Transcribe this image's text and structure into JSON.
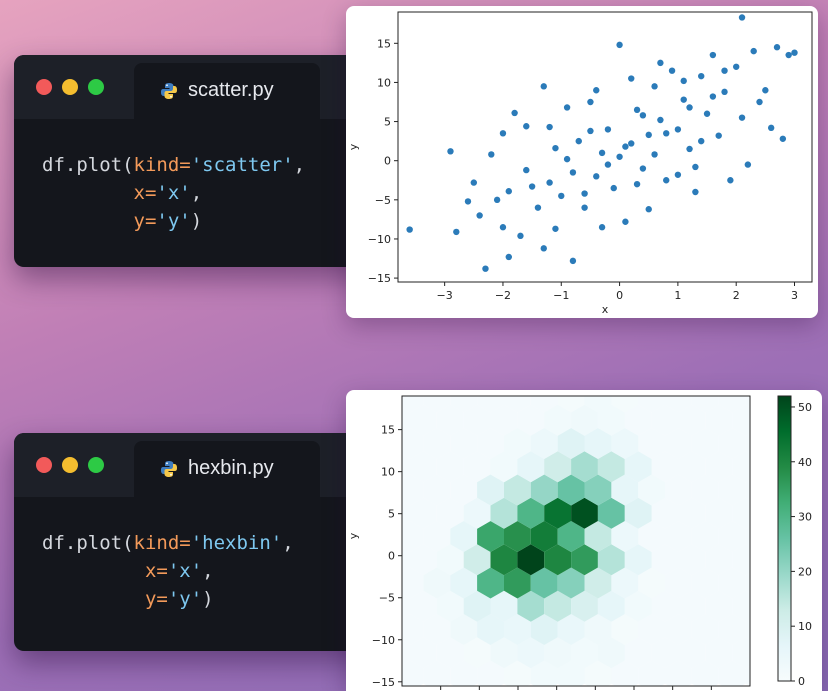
{
  "editors": [
    {
      "tab_label": "scatter.py",
      "code": {
        "line1_prefix": "df.plot(",
        "kind_kw": "kind=",
        "kind_val": "'scatter'",
        "line1_suffix": ",",
        "x_kw": "x=",
        "x_val": "'x'",
        "x_suffix": ",",
        "y_kw": "y=",
        "y_val": "'y'",
        "y_suffix": ")"
      }
    },
    {
      "tab_label": "hexbin.py",
      "code": {
        "line1_prefix": "df.plot(",
        "kind_kw": "kind=",
        "kind_val": "'hexbin'",
        "line1_suffix": ",",
        "x_kw": "x=",
        "x_val": "'x'",
        "x_suffix": ",",
        "y_kw": "y=",
        "y_val": "'y'",
        "y_suffix": ")"
      }
    }
  ],
  "colors": {
    "scatter_point": "#2b7bb9",
    "hex_low": "#f4fafd",
    "hex_high": "#00441b",
    "code_bg": "#14161c"
  },
  "icons": {
    "tab_icon": "python-logo-icon"
  },
  "chart_data": [
    {
      "type": "scatter",
      "xlabel": "x",
      "ylabel": "y",
      "xlim": [
        -3.8,
        3.3
      ],
      "ylim": [
        -15.5,
        19
      ],
      "xticks": [
        -3,
        -2,
        -1,
        0,
        1,
        2,
        3
      ],
      "yticks": [
        -15,
        -10,
        -5,
        0,
        5,
        10,
        15
      ],
      "grid": false,
      "points": [
        [
          -3.6,
          -8.8
        ],
        [
          -2.9,
          1.2
        ],
        [
          -2.8,
          -9.1
        ],
        [
          -2.3,
          -13.8
        ],
        [
          -2.6,
          -5.2
        ],
        [
          -2.1,
          -5.0
        ],
        [
          -2.0,
          -8.5
        ],
        [
          -1.9,
          -12.3
        ],
        [
          -1.7,
          -9.6
        ],
        [
          -1.5,
          -3.3
        ],
        [
          -1.3,
          -11.2
        ],
        [
          -1.1,
          -8.7
        ],
        [
          -0.8,
          -12.8
        ],
        [
          -2.2,
          0.8
        ],
        [
          -2.0,
          3.5
        ],
        [
          -1.8,
          6.1
        ],
        [
          -1.6,
          -1.2
        ],
        [
          -1.3,
          9.5
        ],
        [
          -1.2,
          4.3
        ],
        [
          -1.0,
          -4.5
        ],
        [
          -0.9,
          0.2
        ],
        [
          -0.7,
          2.5
        ],
        [
          -0.6,
          -6.0
        ],
        [
          -0.5,
          7.5
        ],
        [
          -0.4,
          -2.0
        ],
        [
          -0.3,
          1.0
        ],
        [
          -0.2,
          4.0
        ],
        [
          -0.1,
          -3.5
        ],
        [
          0.0,
          14.8
        ],
        [
          0.0,
          0.5
        ],
        [
          0.1,
          -7.8
        ],
        [
          0.2,
          2.2
        ],
        [
          0.3,
          6.5
        ],
        [
          0.4,
          -1.0
        ],
        [
          0.5,
          3.3
        ],
        [
          0.6,
          9.5
        ],
        [
          0.7,
          5.2
        ],
        [
          0.8,
          -2.5
        ],
        [
          0.9,
          11.5
        ],
        [
          1.0,
          4.0
        ],
        [
          1.1,
          7.8
        ],
        [
          1.2,
          1.5
        ],
        [
          1.3,
          -4.0
        ],
        [
          1.4,
          10.8
        ],
        [
          1.5,
          6.0
        ],
        [
          1.6,
          13.5
        ],
        [
          1.7,
          3.2
        ],
        [
          1.8,
          8.8
        ],
        [
          1.9,
          -2.5
        ],
        [
          2.0,
          12.0
        ],
        [
          2.1,
          5.5
        ],
        [
          2.1,
          18.3
        ],
        [
          2.2,
          -0.5
        ],
        [
          2.3,
          14.0
        ],
        [
          2.5,
          9.0
        ],
        [
          2.6,
          4.2
        ],
        [
          2.7,
          14.5
        ],
        [
          2.8,
          2.8
        ],
        [
          2.9,
          13.5
        ],
        [
          3.0,
          13.8
        ],
        [
          -1.4,
          -6.0
        ],
        [
          -1.2,
          -2.8
        ],
        [
          -0.8,
          -1.5
        ],
        [
          -0.6,
          -4.2
        ],
        [
          -0.5,
          3.8
        ],
        [
          -0.2,
          -0.5
        ],
        [
          0.1,
          1.8
        ],
        [
          0.3,
          -3.0
        ],
        [
          0.4,
          5.8
        ],
        [
          0.6,
          0.8
        ],
        [
          0.8,
          3.5
        ],
        [
          1.0,
          -1.8
        ],
        [
          1.2,
          6.8
        ],
        [
          1.4,
          2.5
        ],
        [
          1.6,
          8.2
        ],
        [
          -2.5,
          -2.8
        ],
        [
          -2.4,
          -7.0
        ],
        [
          -1.9,
          -3.9
        ],
        [
          -1.6,
          4.4
        ],
        [
          -1.1,
          1.6
        ],
        [
          -0.9,
          6.8
        ],
        [
          -0.4,
          9.0
        ],
        [
          0.2,
          10.5
        ],
        [
          0.7,
          12.5
        ],
        [
          1.1,
          10.2
        ],
        [
          1.8,
          11.5
        ],
        [
          2.4,
          7.5
        ],
        [
          -0.3,
          -8.5
        ],
        [
          0.5,
          -6.2
        ],
        [
          1.3,
          -0.8
        ]
      ]
    },
    {
      "type": "heatmap",
      "subtype": "hexbin",
      "ylabel": "y",
      "ylim": [
        -15.5,
        19
      ],
      "yticks": [
        -15,
        -10,
        -5,
        0,
        5,
        10,
        15
      ],
      "colorbar": {
        "min": 0,
        "max": 52,
        "ticks": [
          0,
          10,
          20,
          30,
          40,
          50
        ],
        "colormap": "BuGn"
      },
      "bins": [
        [
          4,
          0,
          1
        ],
        [
          5,
          0,
          2
        ],
        [
          6,
          0,
          2
        ],
        [
          7,
          0,
          1
        ],
        [
          2,
          1,
          1
        ],
        [
          3,
          1,
          3
        ],
        [
          4,
          1,
          4
        ],
        [
          5,
          1,
          3
        ],
        [
          6,
          1,
          2
        ],
        [
          7,
          1,
          3
        ],
        [
          2,
          2,
          3
        ],
        [
          3,
          2,
          6
        ],
        [
          4,
          2,
          5
        ],
        [
          5,
          2,
          8
        ],
        [
          6,
          2,
          5
        ],
        [
          7,
          2,
          3
        ],
        [
          8,
          2,
          1
        ],
        [
          1,
          3,
          2
        ],
        [
          2,
          3,
          8
        ],
        [
          3,
          3,
          6
        ],
        [
          4,
          3,
          18
        ],
        [
          5,
          3,
          14
        ],
        [
          6,
          3,
          10
        ],
        [
          7,
          3,
          6
        ],
        [
          8,
          3,
          2
        ],
        [
          1,
          4,
          3
        ],
        [
          2,
          4,
          6
        ],
        [
          3,
          4,
          30
        ],
        [
          4,
          4,
          36
        ],
        [
          5,
          4,
          26
        ],
        [
          6,
          4,
          22
        ],
        [
          7,
          4,
          12
        ],
        [
          8,
          4,
          4
        ],
        [
          9,
          4,
          1
        ],
        [
          1,
          5,
          2
        ],
        [
          2,
          5,
          12
        ],
        [
          3,
          5,
          40
        ],
        [
          4,
          5,
          52
        ],
        [
          5,
          5,
          40
        ],
        [
          6,
          5,
          36
        ],
        [
          7,
          5,
          16
        ],
        [
          8,
          5,
          6
        ],
        [
          2,
          6,
          6
        ],
        [
          3,
          6,
          34
        ],
        [
          4,
          6,
          38
        ],
        [
          5,
          6,
          42
        ],
        [
          6,
          6,
          30
        ],
        [
          7,
          6,
          14
        ],
        [
          8,
          6,
          4
        ],
        [
          2,
          7,
          4
        ],
        [
          3,
          7,
          16
        ],
        [
          4,
          7,
          30
        ],
        [
          5,
          7,
          44
        ],
        [
          6,
          7,
          50
        ],
        [
          7,
          7,
          26
        ],
        [
          8,
          7,
          8
        ],
        [
          3,
          8,
          8
        ],
        [
          4,
          8,
          14
        ],
        [
          5,
          8,
          20
        ],
        [
          6,
          8,
          26
        ],
        [
          7,
          8,
          22
        ],
        [
          8,
          8,
          6
        ],
        [
          9,
          8,
          2
        ],
        [
          3,
          9,
          2
        ],
        [
          4,
          9,
          6
        ],
        [
          5,
          9,
          12
        ],
        [
          6,
          9,
          18
        ],
        [
          7,
          9,
          14
        ],
        [
          8,
          9,
          6
        ],
        [
          4,
          10,
          2
        ],
        [
          5,
          10,
          4
        ],
        [
          6,
          10,
          8
        ],
        [
          7,
          10,
          6
        ],
        [
          8,
          10,
          4
        ],
        [
          5,
          11,
          2
        ],
        [
          6,
          11,
          3
        ],
        [
          7,
          11,
          2
        ],
        [
          6,
          12,
          1
        ],
        [
          7,
          12,
          2
        ],
        [
          8,
          12,
          1
        ]
      ]
    }
  ]
}
